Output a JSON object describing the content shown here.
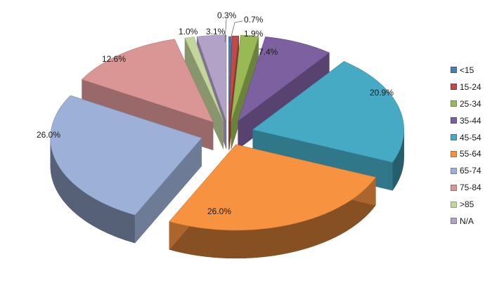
{
  "chart_data": {
    "type": "pie",
    "title": "",
    "legend_position": "right",
    "slices": [
      {
        "label": "<15",
        "value": 0.3,
        "value_label": "0.3%",
        "color": "#4a7ebb"
      },
      {
        "label": "15-24",
        "value": 0.7,
        "value_label": "0.7%",
        "color": "#be4b48"
      },
      {
        "label": "25-34",
        "value": 1.9,
        "value_label": "1.9%",
        "color": "#98b954"
      },
      {
        "label": "35-44",
        "value": 7.4,
        "value_label": "7.4%",
        "color": "#7d60a0"
      },
      {
        "label": "45-54",
        "value": 20.9,
        "value_label": "20.9%",
        "color": "#46aac5"
      },
      {
        "label": "55-64",
        "value": 26.0,
        "value_label": "26.0%",
        "color": "#f69240"
      },
      {
        "label": "65-74",
        "value": 26.0,
        "value_label": "26.0%",
        "color": "#9cb0d8"
      },
      {
        "label": "75-84",
        "value": 12.6,
        "value_label": "12.6%",
        "color": "#d99694"
      },
      {
        "label": ">85",
        "value": 1.0,
        "value_label": "1.0%",
        "color": "#c3d69b"
      },
      {
        "label": "N/A",
        "value": 3.1,
        "value_label": "3.1%",
        "color": "#b3a2c7"
      }
    ]
  }
}
